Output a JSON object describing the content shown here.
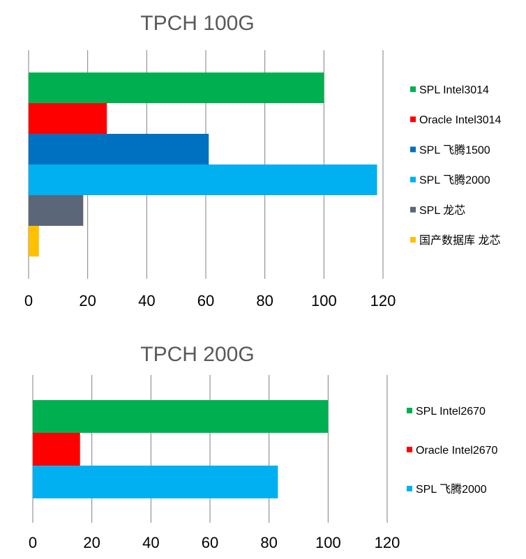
{
  "chart_data": [
    {
      "type": "bar",
      "orientation": "horizontal",
      "title": "TPCH 100G",
      "xlim": [
        0,
        120
      ],
      "xticks": [
        "0",
        "20",
        "40",
        "60",
        "80",
        "100",
        "120"
      ],
      "grid": "vertical",
      "legend_position": "right",
      "series": [
        {
          "name": "SPL Intel3014",
          "value": 100,
          "color": "#00b050"
        },
        {
          "name": "Oracle Intel3014",
          "value": 26.5,
          "color": "#ff0000"
        },
        {
          "name": "SPL 飞腾1500",
          "value": 61,
          "color": "#0070c0"
        },
        {
          "name": "SPL 飞腾2000",
          "value": 118,
          "color": "#00b0f0"
        },
        {
          "name": "SPL 龙芯",
          "value": 18.5,
          "color": "#5b6778"
        },
        {
          "name": "国产数据库 龙芯",
          "value": 3.5,
          "color": "#ffc000"
        }
      ]
    },
    {
      "type": "bar",
      "orientation": "horizontal",
      "title": "TPCH 200G",
      "xlim": [
        0,
        120
      ],
      "xticks": [
        "0",
        "20",
        "40",
        "60",
        "80",
        "100",
        "120"
      ],
      "grid": "vertical",
      "legend_position": "right",
      "series": [
        {
          "name": "SPL Intel2670",
          "value": 100,
          "color": "#00b050"
        },
        {
          "name": "Oracle Intel2670",
          "value": 16,
          "color": "#ff0000"
        },
        {
          "name": "SPL 飞腾2000",
          "value": 83,
          "color": "#00b0f0"
        }
      ]
    }
  ]
}
